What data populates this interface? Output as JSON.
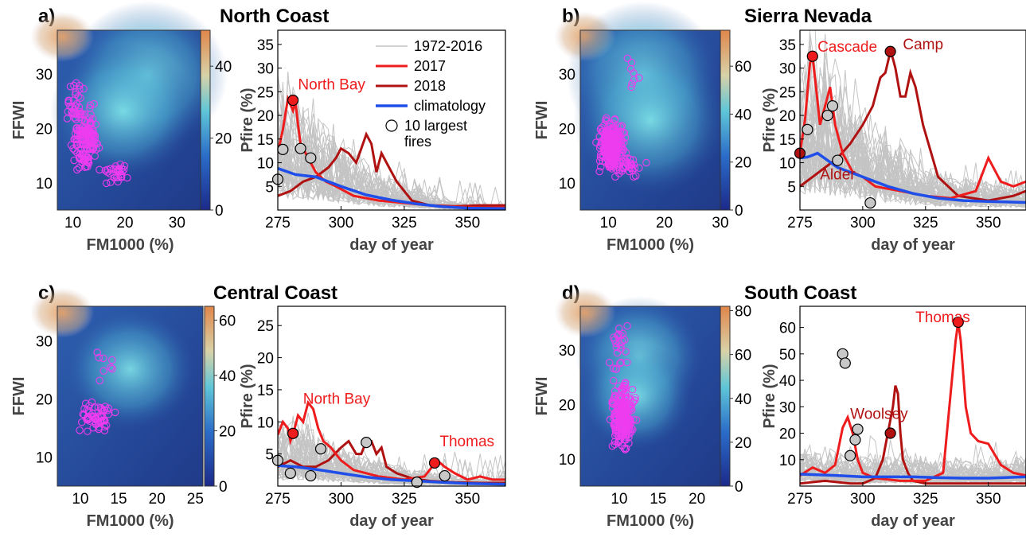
{
  "legend": {
    "historical": "1972-2016",
    "y2017": "2017",
    "y2018": "2018",
    "climatology": "climatology",
    "fires_line1": "10 largest",
    "fires_line2": "fires"
  },
  "colors": {
    "historical": "#c4c4c4",
    "y2017": "#ee1c1c",
    "y2018": "#b01212",
    "climatology": "#1f4fe8",
    "scatter": "#ee3cf0",
    "fire_gray": "#c8c8c8"
  },
  "chart_data": [
    {
      "id": "a",
      "panel_label": "a)",
      "title": "North Coast",
      "heatmap": {
        "type": "scatter",
        "xlabel": "FM1000 (%)",
        "ylabel": "FFWI",
        "xlim": [
          7,
          35
        ],
        "ylim": [
          5,
          38
        ],
        "xticks": [
          10,
          20,
          30
        ],
        "yticks": [
          10,
          20,
          30
        ],
        "colorbar": {
          "lim": [
            0,
            50
          ],
          "ticks": [
            0,
            20,
            40
          ]
        }
      },
      "timeseries": {
        "type": "line",
        "xlabel": "day of year",
        "ylabel": "Pfire (%)",
        "xlim": [
          275,
          365
        ],
        "ylim": [
          0,
          38
        ],
        "xticks": [
          275,
          300,
          325,
          350
        ],
        "yticks": [
          5,
          10,
          15,
          20,
          25,
          30,
          35
        ],
        "climatology": {
          "x": [
            275,
            282,
            290,
            300,
            310,
            320,
            330,
            340,
            350,
            365
          ],
          "y": [
            8.8,
            7.5,
            7.0,
            5.0,
            3.2,
            2.1,
            1.3,
            0.7,
            0.4,
            0.3
          ]
        },
        "y2017": {
          "x": [
            275,
            277,
            279,
            281,
            282,
            283,
            284,
            286,
            288,
            290,
            294,
            298,
            305,
            315,
            325,
            335,
            345,
            355,
            365
          ],
          "y": [
            12,
            17,
            23.5,
            21,
            23,
            18,
            14,
            12,
            10,
            8,
            6,
            5,
            3,
            2,
            1.5,
            1,
            0.7,
            0.5,
            0.5
          ]
        },
        "y2018": {
          "x": [
            275,
            280,
            285,
            290,
            295,
            298,
            300,
            303,
            306,
            308,
            310,
            312,
            314,
            316,
            318,
            322,
            328,
            335,
            345,
            355,
            365
          ],
          "y": [
            3,
            4,
            6,
            7,
            9,
            11,
            13,
            12,
            10,
            13,
            16,
            14,
            8,
            12,
            10,
            6,
            2,
            1,
            0.8,
            1,
            1
          ]
        },
        "fires": [
          {
            "x": 275,
            "y": 6.5,
            "year": "hist"
          },
          {
            "x": 277,
            "y": 12.8,
            "year": "hist"
          },
          {
            "x": 284,
            "y": 13.0,
            "year": "hist"
          },
          {
            "x": 288,
            "y": 11.0,
            "year": "hist"
          },
          {
            "x": 281,
            "y": 23.2,
            "year": "2017"
          }
        ],
        "labels": [
          {
            "text": "North Bay",
            "x": 283,
            "y": 25.5,
            "year": "2017"
          }
        ]
      }
    },
    {
      "id": "b",
      "panel_label": "b)",
      "title": "Sierra Nevada",
      "heatmap": {
        "type": "scatter",
        "xlabel": "FM1000 (%)",
        "ylabel": "FFWI",
        "xlim": [
          5,
          30
        ],
        "ylim": [
          5,
          38
        ],
        "xticks": [
          10,
          20,
          30
        ],
        "yticks": [
          10,
          20,
          30
        ],
        "colorbar": {
          "lim": [
            0,
            75
          ],
          "ticks": [
            0,
            20,
            40,
            60
          ]
        }
      },
      "timeseries": {
        "type": "line",
        "xlabel": "day of year",
        "ylabel": "Pfire (%)",
        "xlim": [
          275,
          365
        ],
        "ylim": [
          0,
          38
        ],
        "xticks": [
          275,
          300,
          325,
          350
        ],
        "yticks": [
          5,
          10,
          15,
          20,
          25,
          30,
          35
        ],
        "climatology": {
          "x": [
            275,
            278,
            282,
            286,
            290,
            300,
            310,
            320,
            330,
            340,
            350,
            365
          ],
          "y": [
            11,
            11.2,
            12,
            10.5,
            9,
            7,
            5,
            3.5,
            2.5,
            2,
            1.8,
            1.6
          ]
        },
        "y2017": {
          "x": [
            275,
            277,
            279,
            280,
            281,
            283,
            285,
            287,
            289,
            292,
            296,
            300,
            305,
            315,
            325,
            335,
            345,
            350,
            355,
            360,
            365
          ],
          "y": [
            12,
            19,
            31,
            32.5,
            28,
            18,
            22,
            26,
            18,
            12,
            8,
            7,
            5,
            4,
            3,
            2.5,
            4,
            11,
            6,
            5,
            6
          ]
        },
        "y2018": {
          "x": [
            275,
            280,
            285,
            290,
            295,
            300,
            304,
            307,
            309,
            311,
            312,
            313,
            315,
            317,
            319,
            321,
            324,
            330,
            338,
            350,
            360,
            365
          ],
          "y": [
            5,
            7,
            9,
            11,
            14,
            18,
            22,
            28,
            29,
            33.5,
            32,
            30,
            24,
            24,
            29,
            26,
            18,
            7,
            3,
            2,
            3,
            4
          ]
        },
        "fires": [
          {
            "x": 275,
            "y": 12.0,
            "year": "2018"
          },
          {
            "x": 278,
            "y": 17.0,
            "year": "hist"
          },
          {
            "x": 286,
            "y": 20.0,
            "year": "hist"
          },
          {
            "x": 288,
            "y": 22.0,
            "year": "hist"
          },
          {
            "x": 290,
            "y": 10.5,
            "year": "hist"
          },
          {
            "x": 303,
            "y": 1.5,
            "year": "hist"
          },
          {
            "x": 280,
            "y": 32.5,
            "year": "2017"
          },
          {
            "x": 311,
            "y": 33.5,
            "year": "2018"
          }
        ],
        "labels": [
          {
            "text": "Cascade",
            "x": 282,
            "y": 33.5,
            "year": "2017"
          },
          {
            "x": 316,
            "y": 34.0,
            "text": "Camp",
            "year": "2018"
          },
          {
            "x": 283,
            "y": 6.5,
            "text": "Alder",
            "year": "2018"
          }
        ]
      }
    },
    {
      "id": "c",
      "panel_label": "c)",
      "title": "Central Coast",
      "heatmap": {
        "type": "scatter",
        "xlabel": "FM1000 (%)",
        "ylabel": "FFWI",
        "xlim": [
          7,
          26
        ],
        "ylim": [
          5,
          36
        ],
        "xticks": [
          10,
          15,
          20,
          25
        ],
        "yticks": [
          10,
          20,
          30
        ],
        "colorbar": {
          "lim": [
            0,
            65
          ],
          "ticks": [
            0,
            20,
            40,
            60
          ]
        }
      },
      "timeseries": {
        "type": "line",
        "xlabel": "day of year",
        "ylabel": "Pfire (%)",
        "xlim": [
          275,
          365
        ],
        "ylim": [
          0,
          28
        ],
        "xticks": [
          275,
          300,
          325,
          350
        ],
        "yticks": [
          5,
          10,
          15,
          20,
          25
        ],
        "climatology": {
          "x": [
            275,
            282,
            290,
            300,
            310,
            320,
            330,
            340,
            350,
            365
          ],
          "y": [
            3.2,
            3.0,
            2.6,
            2.0,
            1.4,
            1.0,
            0.8,
            0.6,
            0.4,
            0.3
          ]
        },
        "y2017": {
          "x": [
            275,
            277,
            279,
            280,
            281,
            283,
            285,
            287,
            289,
            291,
            293,
            296,
            300,
            305,
            315,
            325,
            333,
            336,
            338,
            341,
            345,
            350,
            355,
            360,
            365
          ],
          "y": [
            8,
            10,
            9,
            7,
            8,
            11,
            10,
            13,
            12,
            9,
            7,
            6,
            4,
            2.5,
            1.5,
            1,
            1.5,
            3,
            4,
            3,
            2,
            1,
            1.5,
            1,
            1
          ]
        },
        "y2018": {
          "x": [
            275,
            280,
            285,
            290,
            295,
            300,
            303,
            306,
            308,
            310,
            312,
            314,
            316,
            318,
            322,
            328,
            335,
            345,
            355,
            365
          ],
          "y": [
            3,
            4,
            3,
            3,
            4,
            6,
            7,
            5,
            5,
            7,
            7,
            5,
            6,
            3,
            2,
            1.2,
            0.8,
            0.6,
            0.5,
            0.5
          ]
        },
        "fires": [
          {
            "x": 275,
            "y": 4.0,
            "year": "hist"
          },
          {
            "x": 280,
            "y": 2.0,
            "year": "hist"
          },
          {
            "x": 288,
            "y": 1.6,
            "year": "hist"
          },
          {
            "x": 292,
            "y": 5.8,
            "year": "hist"
          },
          {
            "x": 310,
            "y": 6.8,
            "year": "hist"
          },
          {
            "x": 330,
            "y": 0.6,
            "year": "hist"
          },
          {
            "x": 341,
            "y": 1.6,
            "year": "hist"
          },
          {
            "x": 281,
            "y": 8.2,
            "year": "2017"
          },
          {
            "x": 337,
            "y": 3.6,
            "year": "2017"
          }
        ],
        "labels": [
          {
            "text": "North Bay",
            "x": 285,
            "y": 12.8,
            "year": "2017"
          },
          {
            "text": "Thomas",
            "x": 339,
            "y": 6.2,
            "year": "2017"
          }
        ]
      }
    },
    {
      "id": "d",
      "panel_label": "d)",
      "title": "South Coast",
      "heatmap": {
        "type": "scatter",
        "xlabel": "FM1000 (%)",
        "ylabel": "FFWI",
        "xlim": [
          5,
          23
        ],
        "ylim": [
          5,
          38
        ],
        "xticks": [
          10,
          15,
          20
        ],
        "yticks": [
          10,
          20,
          30
        ],
        "colorbar": {
          "lim": [
            0,
            82
          ],
          "ticks": [
            0,
            20,
            40,
            60,
            80
          ]
        }
      },
      "timeseries": {
        "type": "line",
        "xlabel": "day of year",
        "ylabel": "Pfire (%)",
        "xlim": [
          275,
          365
        ],
        "ylim": [
          0,
          68
        ],
        "xticks": [
          275,
          300,
          325,
          350
        ],
        "yticks": [
          10,
          20,
          30,
          40,
          50,
          60
        ],
        "climatology": {
          "x": [
            275,
            290,
            300,
            310,
            320,
            330,
            340,
            350,
            365
          ],
          "y": [
            4.5,
            4.0,
            3.5,
            3.5,
            3.5,
            3.2,
            3.0,
            3.0,
            3.5
          ]
        },
        "y2017": {
          "x": [
            275,
            280,
            285,
            289,
            292,
            294,
            296,
            298,
            300,
            305,
            315,
            325,
            332,
            335,
            337,
            338,
            339,
            341,
            343,
            346,
            350,
            355,
            360,
            365
          ],
          "y": [
            4,
            7,
            5,
            8,
            22,
            26,
            20,
            10,
            5,
            3,
            2,
            2,
            5,
            35,
            55,
            62,
            55,
            30,
            20,
            17,
            16,
            8,
            5,
            4
          ]
        },
        "y2018": {
          "x": [
            275,
            285,
            295,
            300,
            305,
            308,
            310,
            312,
            313,
            314,
            315,
            316,
            318,
            320,
            325,
            335,
            345,
            355,
            365
          ],
          "y": [
            1,
            2,
            1,
            1,
            3,
            10,
            20,
            30,
            38,
            35,
            20,
            10,
            5,
            2,
            1,
            1,
            1,
            1,
            1
          ]
        },
        "fires": [
          {
            "x": 292,
            "y": 50.0,
            "year": "hist"
          },
          {
            "x": 293,
            "y": 46.5,
            "year": "hist"
          },
          {
            "x": 298,
            "y": 21.5,
            "year": "hist"
          },
          {
            "x": 297,
            "y": 17.5,
            "year": "hist"
          },
          {
            "x": 295,
            "y": 11.5,
            "year": "hist"
          },
          {
            "x": 311,
            "y": 20.0,
            "year": "2018"
          },
          {
            "x": 338,
            "y": 62.0,
            "year": "2017"
          }
        ],
        "labels": [
          {
            "text": "Thomas",
            "x": 321,
            "y": 62.0,
            "year": "2017"
          },
          {
            "text": "Woolsey",
            "x": 295,
            "y": 25.5,
            "year": "2018"
          }
        ]
      }
    }
  ]
}
